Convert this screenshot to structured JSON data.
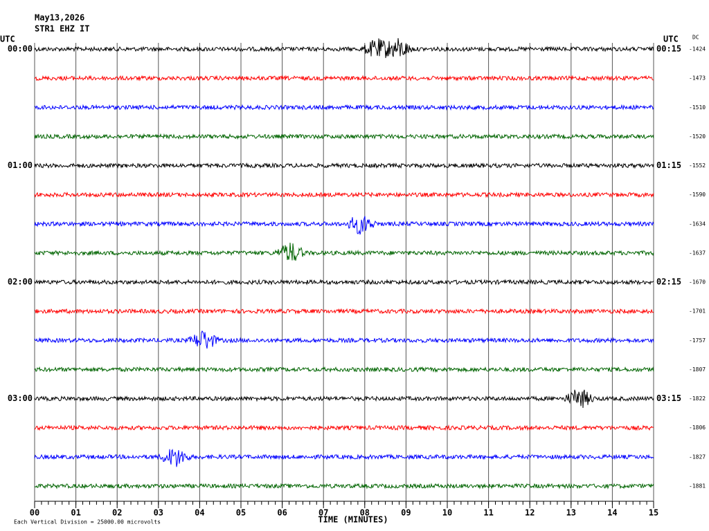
{
  "chart_data": {
    "type": "helicorder",
    "title": "May13,2026",
    "subtitle": "STR1 EHZ IT",
    "utc_label": "UTC",
    "dc_label": "DC",
    "xlabel": "TIME (MINUTES)",
    "note": "Each Vertical Division = 25000.00 microvolts",
    "xlim": [
      0,
      15
    ],
    "xticks": [
      {
        "value": 0,
        "label": "00"
      },
      {
        "value": 1,
        "label": "01"
      },
      {
        "value": 2,
        "label": "02"
      },
      {
        "value": 3,
        "label": "03"
      },
      {
        "value": 4,
        "label": "04"
      },
      {
        "value": 5,
        "label": "05"
      },
      {
        "value": 6,
        "label": "06"
      },
      {
        "value": 7,
        "label": "07"
      },
      {
        "value": 8,
        "label": "08"
      },
      {
        "value": 9,
        "label": "09"
      },
      {
        "value": 10,
        "label": "10"
      },
      {
        "value": 11,
        "label": "11"
      },
      {
        "value": 12,
        "label": "12"
      },
      {
        "value": 13,
        "label": "13"
      },
      {
        "value": 14,
        "label": "14"
      },
      {
        "value": 15,
        "label": "15"
      }
    ],
    "row_labels_left": [
      "00:00",
      "01:00",
      "02:00",
      "03:00"
    ],
    "row_labels_right": [
      "00:15",
      "01:15",
      "02:15",
      "03:15"
    ],
    "dc_values": [
      -1424,
      -1473,
      -1510,
      -1520,
      -1552,
      -1590,
      -1634,
      -1637,
      -1670,
      -1701,
      -1757,
      -1807,
      -1822,
      -1806,
      -1827,
      -1881
    ],
    "colors": [
      "#000000",
      "#ff0000",
      "#0000ff",
      "#006400"
    ],
    "grid": true
  }
}
